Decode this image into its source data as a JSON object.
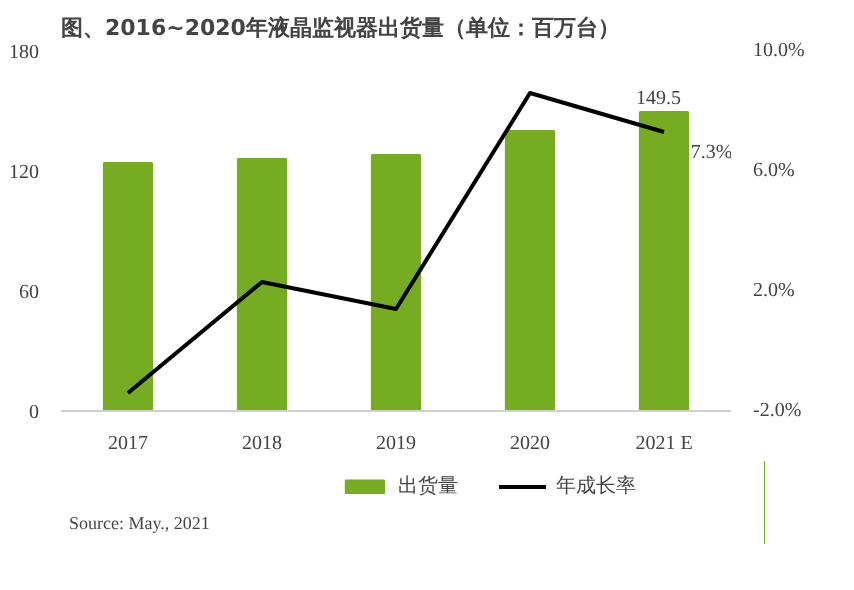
{
  "chart_data": {
    "type": "bar",
    "title": "图、2016~2020年液晶监视器出货量（单位：百万台）",
    "categories": [
      "2017",
      "2018",
      "2019",
      "2020",
      "2021 E"
    ],
    "series": [
      {
        "name": "出货量",
        "color": "#76ac22",
        "values": [
          124,
          126,
          128,
          140,
          149.5
        ],
        "value_labels": [
          null,
          null,
          null,
          null,
          "149.5"
        ]
      },
      {
        "name": "年成长率",
        "type": "line",
        "axis": "y2",
        "color": "#000000",
        "values": [
          -1.4,
          2.3,
          1.4,
          8.6,
          7.3
        ],
        "value_labels": [
          null,
          null,
          null,
          null,
          "7.3%"
        ]
      }
    ],
    "ylim": [
      0,
      180
    ],
    "yticks": [
      0,
      60,
      120,
      180
    ],
    "y2lim": [
      -2,
      10
    ],
    "y2ticks": [
      {
        "value": -2,
        "label": "-2.0%"
      },
      {
        "value": 2,
        "label": "2.0%"
      },
      {
        "value": 6,
        "label": "6.0%"
      },
      {
        "value": 10,
        "label": "10.0%"
      }
    ],
    "grid": false,
    "legend": "bottom",
    "marker": "none",
    "line_style": "solid",
    "annotations": [
      "Source: May., 2021"
    ]
  }
}
